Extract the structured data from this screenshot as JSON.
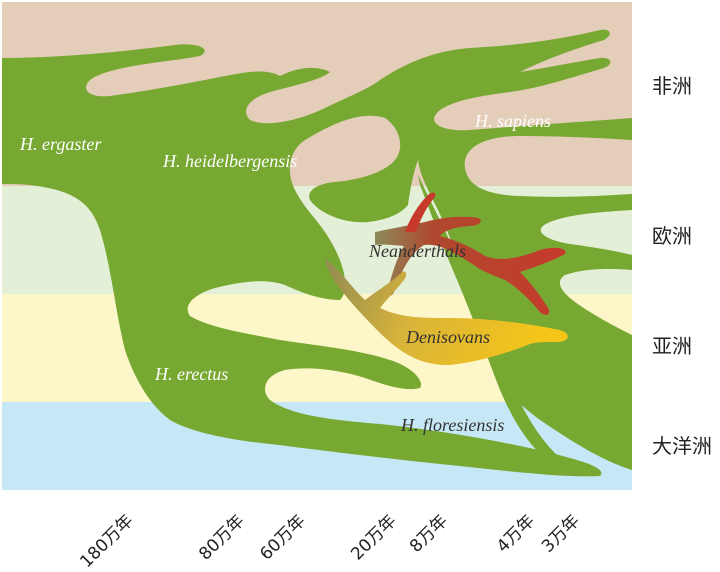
{
  "regions": [
    {
      "label": "非洲",
      "color": "#e4cdb9"
    },
    {
      "label": "欧洲",
      "color": "#e3efd7"
    },
    {
      "label": "亚洲",
      "color": "#fdf6c8"
    },
    {
      "label": "大洋洲",
      "color": "#c6e8f6"
    }
  ],
  "lineages": {
    "ergaster": "H. ergaster",
    "heidelbergensis": "H. heidelbergensis",
    "sapiens": "H. sapiens",
    "neanderthals": "Neanderthals",
    "denisovans": "Denisovans",
    "erectus": "H. erectus",
    "floresiensis": "H. floresiensis"
  },
  "colors": {
    "green": "#77a832",
    "red": "#c73a2b",
    "yellow": "#f5c518"
  },
  "time_axis": [
    "180万年",
    "80万年",
    "60万年",
    "20万年",
    "8万年",
    "4万年",
    "3万年"
  ]
}
